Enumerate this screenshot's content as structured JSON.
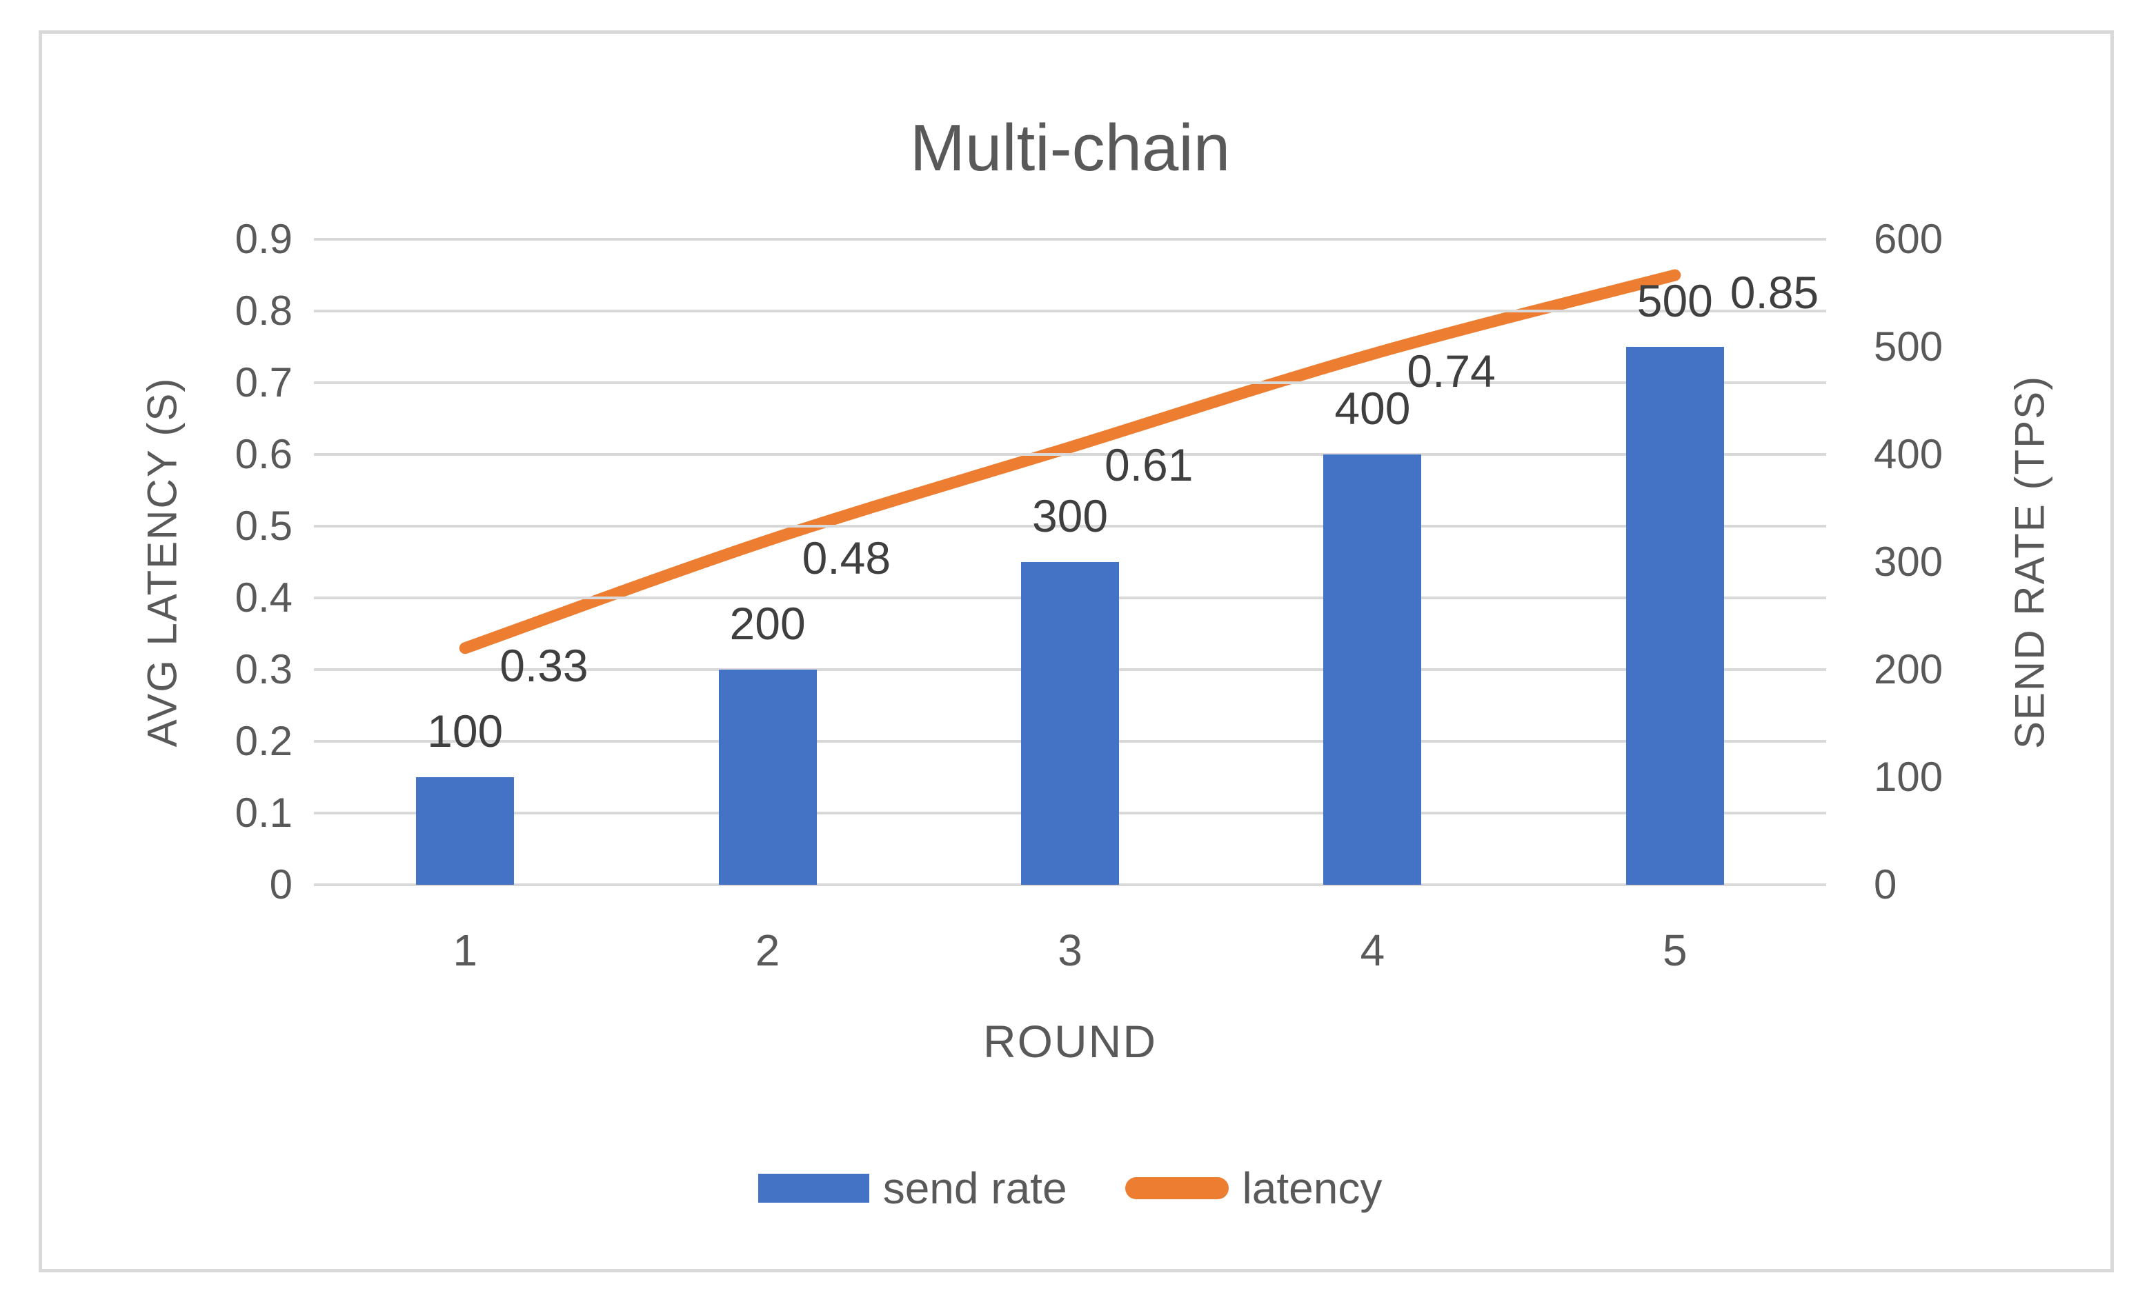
{
  "title": "Multi-chain",
  "colors": {
    "bar": "#4472C4",
    "line": "#ED7D31",
    "grid": "#D9D9D9",
    "frame": "#D9D9D9",
    "axis_text": "#595959",
    "data_label_text": "#3F3F3F",
    "title_text": "#595959"
  },
  "left_axis": {
    "title": "AVG LATENCY (S)",
    "ticks": [
      "0.9",
      "0.8",
      "0.7",
      "0.6",
      "0.5",
      "0.4",
      "0.3",
      "0.2",
      "0.1",
      "0"
    ]
  },
  "right_axis": {
    "title": "SEND RATE (TPS)",
    "ticks": [
      "600",
      "500",
      "400",
      "300",
      "200",
      "100",
      "0"
    ]
  },
  "x_axis": {
    "title": "ROUND",
    "categories": [
      "1",
      "2",
      "3",
      "4",
      "5"
    ]
  },
  "legend": [
    {
      "label": "send rate",
      "type": "bar"
    },
    {
      "label": "latency",
      "type": "line"
    }
  ],
  "chart_data": {
    "type": "combo",
    "categories": [
      1,
      2,
      3,
      4,
      5
    ],
    "series": [
      {
        "name": "send rate",
        "type": "bar",
        "axis": "right",
        "values": [
          100,
          200,
          300,
          400,
          500
        ],
        "labels": [
          "100",
          "200",
          "300",
          "400",
          "500"
        ],
        "color": "#4472C4"
      },
      {
        "name": "latency",
        "type": "line",
        "axis": "left",
        "smoothed": true,
        "values": [
          0.33,
          0.48,
          0.61,
          0.74,
          0.85
        ],
        "labels": [
          "0.33",
          "0.48",
          "0.61",
          "0.74",
          "0.85"
        ],
        "color": "#ED7D31"
      }
    ],
    "title": "Multi-chain",
    "xlabel": "ROUND",
    "ylabel_left": "AVG LATENCY (S)",
    "ylabel_right": "SEND RATE (TPS)",
    "left_ylim": [
      0,
      0.9
    ],
    "right_ylim": [
      0,
      600
    ],
    "grid": true,
    "legend_position": "bottom"
  }
}
